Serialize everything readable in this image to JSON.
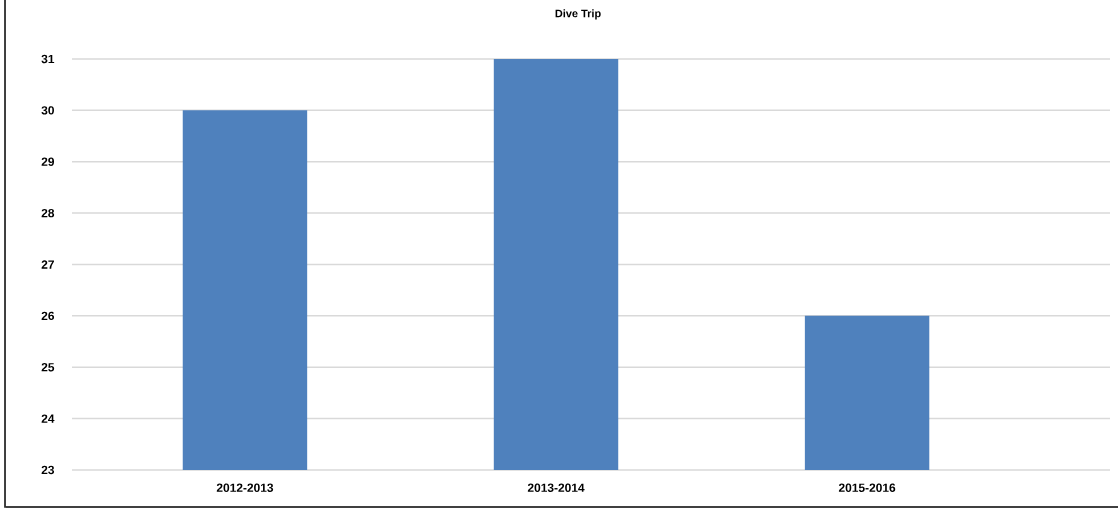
{
  "chart_data": {
    "type": "bar",
    "title": "Dive Trip",
    "categories": [
      "2012-2013",
      "2013-2014",
      "2015-2016"
    ],
    "values": [
      30,
      31,
      26
    ],
    "color": "#4f81bd",
    "ylim": [
      23,
      31
    ],
    "yticks": [
      23,
      24,
      25,
      26,
      27,
      28,
      29,
      30,
      31
    ],
    "grid": "y"
  }
}
